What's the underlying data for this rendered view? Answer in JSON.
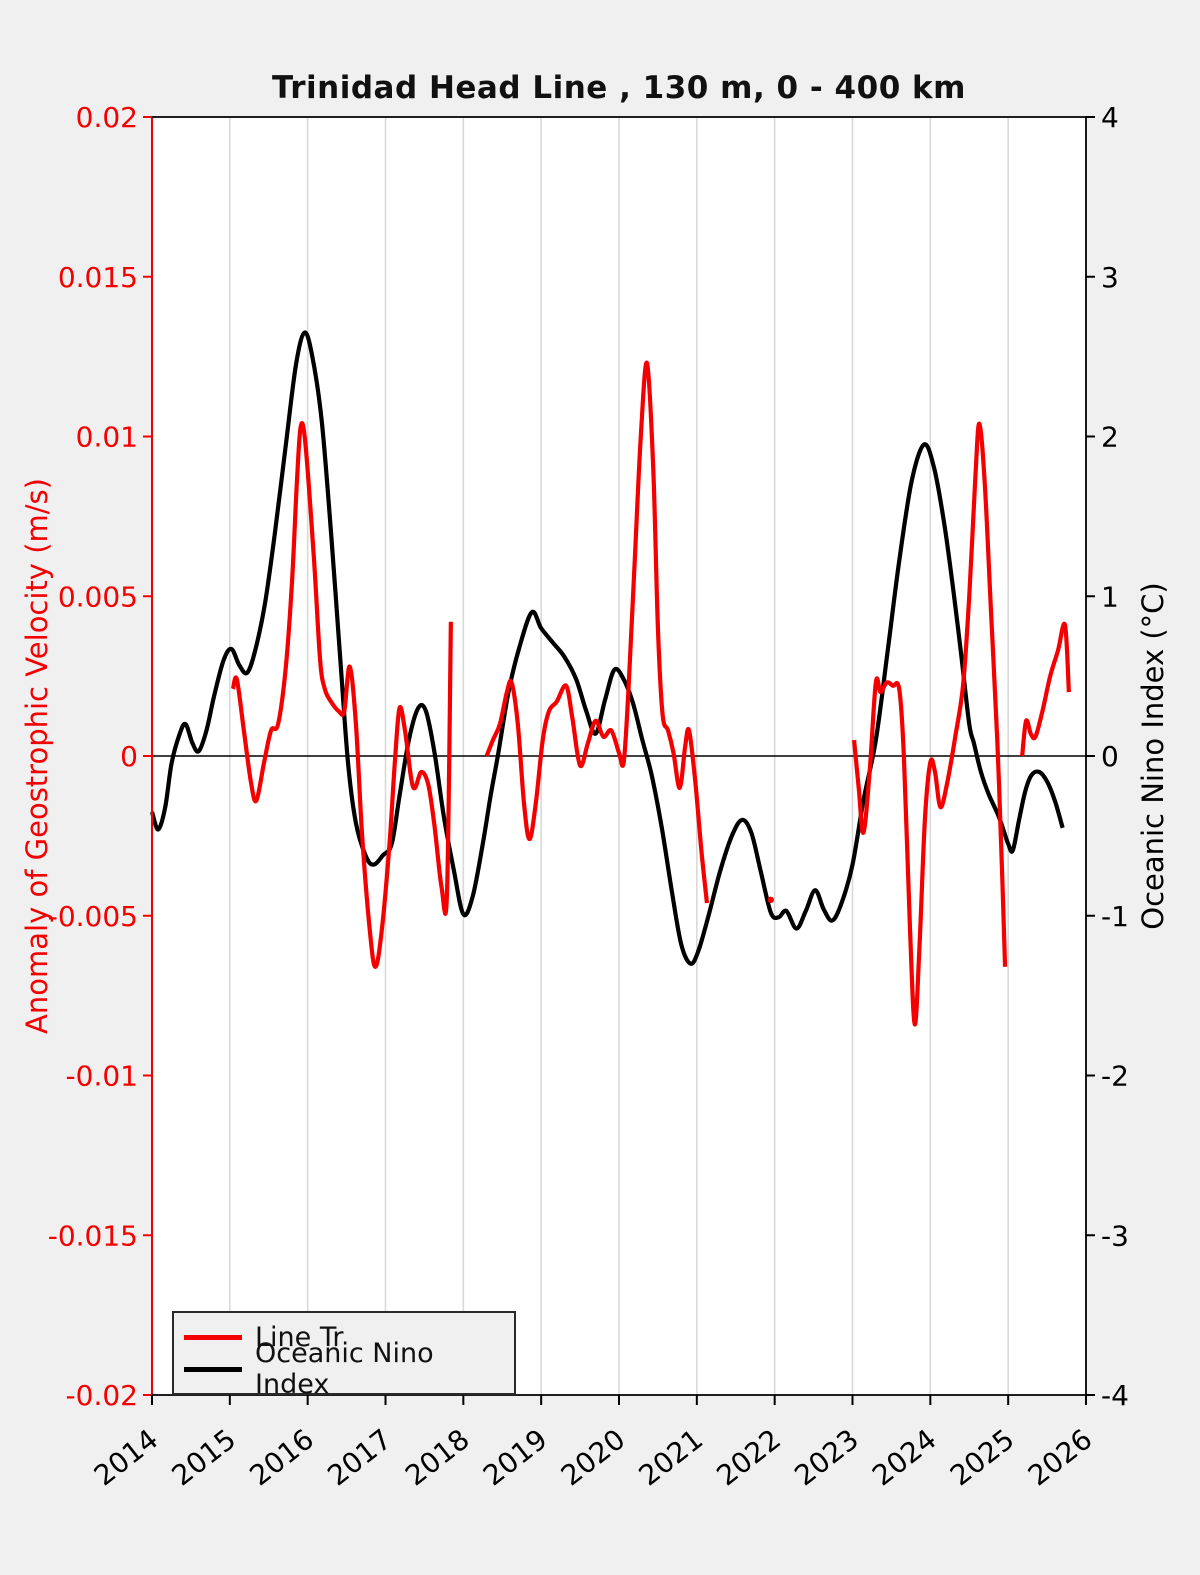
{
  "title": "Trinidad Head Line , 130 m, 0 - 400 km",
  "colors": {
    "figure_background": "#f0f0f0",
    "plot_background": "#ffffff",
    "grid": "#d9d9d9",
    "red_accent": "#f40000",
    "black": "#000000"
  },
  "left_axis": {
    "label": "Anomaly of Geostrophic Velocity (m/s)",
    "color": "#f40000",
    "lim": [
      -0.02,
      0.02
    ],
    "ticks": [
      0.02,
      0.015,
      0.01,
      0.005,
      0,
      -0.005,
      -0.01,
      -0.015,
      -0.02
    ],
    "tick_labels": [
      "0.02",
      "0.015",
      "0.01",
      "0.005",
      "0",
      "-0.005",
      "-0.01",
      "-0.015",
      "-0.02"
    ]
  },
  "right_axis": {
    "label": "Oceanic Nino Index (°C)",
    "color": "#000000",
    "lim": [
      -4,
      4
    ],
    "ticks": [
      4,
      3,
      2,
      1,
      0,
      -1,
      -2,
      -3,
      -4
    ],
    "tick_labels": [
      "4",
      "3",
      "2",
      "1",
      "0",
      "-1",
      "-2",
      "-3",
      "-4"
    ]
  },
  "x_axis": {
    "lim": [
      2014,
      2026
    ],
    "ticks": [
      2014,
      2015,
      2016,
      2017,
      2018,
      2019,
      2020,
      2021,
      2022,
      2023,
      2024,
      2025,
      2026
    ],
    "tick_labels": [
      "2014",
      "2015",
      "2016",
      "2017",
      "2018",
      "2019",
      "2020",
      "2021",
      "2022",
      "2023",
      "2024",
      "2025",
      "2026"
    ]
  },
  "legend": {
    "items": [
      {
        "label": "Line Tr",
        "color": "#f40000"
      },
      {
        "label": "Oceanic Nino Index",
        "color": "#000000"
      }
    ]
  },
  "chart_data": {
    "type": "line",
    "title": "Trinidad Head Line , 130 m, 0 - 400 km",
    "x_unit": "decimal year",
    "grid": "vertical-yearly",
    "legend_position": "lower-left",
    "series": [
      {
        "name": "Oceanic Nino Index",
        "axis": "right",
        "color": "#000000",
        "linewidth": 4.2,
        "segments": [
          [
            [
              2014.0,
              -0.35
            ],
            [
              2014.08,
              -0.46
            ],
            [
              2014.17,
              -0.32
            ],
            [
              2014.25,
              -0.05
            ],
            [
              2014.35,
              0.13
            ],
            [
              2014.43,
              0.2
            ],
            [
              2014.52,
              0.08
            ],
            [
              2014.6,
              0.03
            ],
            [
              2014.7,
              0.16
            ],
            [
              2014.8,
              0.38
            ],
            [
              2014.92,
              0.6
            ],
            [
              2015.02,
              0.67
            ],
            [
              2015.12,
              0.57
            ],
            [
              2015.22,
              0.52
            ],
            [
              2015.32,
              0.65
            ],
            [
              2015.45,
              0.95
            ],
            [
              2015.58,
              1.4
            ],
            [
              2015.72,
              1.95
            ],
            [
              2015.85,
              2.45
            ],
            [
              2015.96,
              2.65
            ],
            [
              2016.06,
              2.5
            ],
            [
              2016.18,
              2.1
            ],
            [
              2016.3,
              1.4
            ],
            [
              2016.42,
              0.6
            ],
            [
              2016.52,
              -0.05
            ],
            [
              2016.62,
              -0.42
            ],
            [
              2016.75,
              -0.63
            ],
            [
              2016.85,
              -0.68
            ],
            [
              2016.97,
              -0.62
            ],
            [
              2017.08,
              -0.55
            ],
            [
              2017.18,
              -0.25
            ],
            [
              2017.3,
              0.1
            ],
            [
              2017.42,
              0.3
            ],
            [
              2017.52,
              0.28
            ],
            [
              2017.63,
              0.02
            ],
            [
              2017.75,
              -0.38
            ],
            [
              2017.88,
              -0.72
            ],
            [
              2018.0,
              -0.99
            ],
            [
              2018.12,
              -0.88
            ],
            [
              2018.25,
              -0.55
            ],
            [
              2018.35,
              -0.25
            ],
            [
              2018.45,
              0.02
            ],
            [
              2018.58,
              0.4
            ],
            [
              2018.72,
              0.68
            ],
            [
              2018.88,
              0.9
            ],
            [
              2019.0,
              0.8
            ],
            [
              2019.15,
              0.71
            ],
            [
              2019.3,
              0.62
            ],
            [
              2019.45,
              0.48
            ],
            [
              2019.58,
              0.28
            ],
            [
              2019.7,
              0.14
            ],
            [
              2019.82,
              0.35
            ],
            [
              2019.94,
              0.54
            ],
            [
              2020.06,
              0.48
            ],
            [
              2020.18,
              0.33
            ],
            [
              2020.3,
              0.1
            ],
            [
              2020.42,
              -0.12
            ],
            [
              2020.55,
              -0.45
            ],
            [
              2020.68,
              -0.85
            ],
            [
              2020.8,
              -1.18
            ],
            [
              2020.92,
              -1.3
            ],
            [
              2021.02,
              -1.22
            ],
            [
              2021.15,
              -1.0
            ],
            [
              2021.3,
              -0.72
            ],
            [
              2021.45,
              -0.5
            ],
            [
              2021.58,
              -0.4
            ],
            [
              2021.7,
              -0.48
            ],
            [
              2021.82,
              -0.72
            ],
            [
              2021.95,
              -0.98
            ],
            [
              2022.05,
              -1.01
            ],
            [
              2022.15,
              -0.97
            ],
            [
              2022.28,
              -1.08
            ],
            [
              2022.4,
              -0.97
            ],
            [
              2022.52,
              -0.84
            ],
            [
              2022.63,
              -0.96
            ],
            [
              2022.74,
              -1.03
            ],
            [
              2022.86,
              -0.92
            ],
            [
              2023.0,
              -0.68
            ],
            [
              2023.14,
              -0.28
            ],
            [
              2023.3,
              0.1
            ],
            [
              2023.45,
              0.65
            ],
            [
              2023.6,
              1.22
            ],
            [
              2023.76,
              1.72
            ],
            [
              2023.92,
              1.95
            ],
            [
              2024.05,
              1.8
            ],
            [
              2024.18,
              1.45
            ],
            [
              2024.3,
              1.02
            ],
            [
              2024.4,
              0.62
            ],
            [
              2024.5,
              0.2
            ],
            [
              2024.56,
              0.08
            ],
            [
              2024.65,
              -0.1
            ],
            [
              2024.75,
              -0.24
            ],
            [
              2024.88,
              -0.38
            ],
            [
              2025.0,
              -0.55
            ],
            [
              2025.06,
              -0.59
            ],
            [
              2025.14,
              -0.4
            ],
            [
              2025.22,
              -0.22
            ],
            [
              2025.3,
              -0.12
            ],
            [
              2025.4,
              -0.1
            ],
            [
              2025.5,
              -0.16
            ],
            [
              2025.6,
              -0.28
            ],
            [
              2025.7,
              -0.45
            ]
          ]
        ]
      },
      {
        "name": "Line Tr",
        "axis": "left",
        "color": "#f40000",
        "linewidth": 4.2,
        "segments": [
          [
            [
              2015.04,
              0.0021
            ],
            [
              2015.09,
              0.0024
            ],
            [
              2015.18,
              0.0008
            ],
            [
              2015.27,
              -0.0008
            ],
            [
              2015.34,
              -0.0014
            ],
            [
              2015.44,
              -0.0002
            ],
            [
              2015.53,
              0.0008
            ],
            [
              2015.62,
              0.001
            ],
            [
              2015.72,
              0.0028
            ],
            [
              2015.8,
              0.0055
            ],
            [
              2015.86,
              0.0085
            ],
            [
              2015.91,
              0.0103
            ],
            [
              2015.97,
              0.0098
            ],
            [
              2016.08,
              0.0062
            ],
            [
              2016.16,
              0.003
            ],
            [
              2016.22,
              0.0021
            ],
            [
              2016.3,
              0.0017
            ],
            [
              2016.4,
              0.0014
            ],
            [
              2016.47,
              0.0014
            ],
            [
              2016.54,
              0.0028
            ],
            [
              2016.62,
              0.001
            ],
            [
              2016.7,
              -0.0025
            ],
            [
              2016.8,
              -0.0055
            ],
            [
              2016.87,
              -0.0066
            ],
            [
              2016.95,
              -0.0055
            ],
            [
              2017.05,
              -0.0028
            ],
            [
              2017.12,
              -0.0002
            ],
            [
              2017.18,
              0.0015
            ],
            [
              2017.25,
              0.0008
            ],
            [
              2017.33,
              -0.0007
            ],
            [
              2017.38,
              -0.001
            ],
            [
              2017.46,
              -0.0005
            ],
            [
              2017.55,
              -0.0009
            ],
            [
              2017.63,
              -0.0022
            ],
            [
              2017.72,
              -0.0041
            ],
            [
              2017.79,
              -0.0043
            ],
            [
              2017.84,
              0.0042
            ]
          ],
          [
            [
              2018.3,
              0.0
            ],
            [
              2018.38,
              0.0005
            ],
            [
              2018.47,
              0.001
            ],
            [
              2018.56,
              0.002
            ],
            [
              2018.62,
              0.0023
            ],
            [
              2018.7,
              0.001
            ],
            [
              2018.78,
              -0.0015
            ],
            [
              2018.85,
              -0.0026
            ],
            [
              2018.93,
              -0.0015
            ],
            [
              2019.02,
              0.0005
            ],
            [
              2019.1,
              0.0014
            ],
            [
              2019.2,
              0.0017
            ],
            [
              2019.32,
              0.0022
            ],
            [
              2019.4,
              0.0012
            ],
            [
              2019.5,
              -0.0003
            ],
            [
              2019.6,
              0.0004
            ],
            [
              2019.7,
              0.0011
            ],
            [
              2019.8,
              0.0006
            ],
            [
              2019.9,
              0.0008
            ],
            [
              2020.0,
              0.0001
            ],
            [
              2020.06,
              -0.0002
            ],
            [
              2020.12,
              0.002
            ],
            [
              2020.2,
              0.006
            ],
            [
              2020.28,
              0.01
            ],
            [
              2020.36,
              0.0123
            ],
            [
              2020.44,
              0.009
            ],
            [
              2020.5,
              0.004
            ],
            [
              2020.56,
              0.0013
            ],
            [
              2020.63,
              0.0008
            ],
            [
              2020.7,
              0.0001
            ],
            [
              2020.78,
              -0.001
            ],
            [
              2020.85,
              0.0003
            ],
            [
              2020.9,
              0.0008
            ],
            [
              2020.98,
              -0.0008
            ],
            [
              2021.06,
              -0.003
            ],
            [
              2021.13,
              -0.0046
            ]
          ],
          [
            [
              2021.95,
              -0.0045
            ]
          ],
          [
            [
              2023.02,
              0.0005
            ],
            [
              2023.08,
              -0.001
            ],
            [
              2023.14,
              -0.0024
            ],
            [
              2023.22,
              -0.0005
            ],
            [
              2023.3,
              0.0023
            ],
            [
              2023.36,
              0.002
            ],
            [
              2023.44,
              0.0023
            ],
            [
              2023.52,
              0.0022
            ],
            [
              2023.6,
              0.0021
            ],
            [
              2023.66,
              0.0
            ],
            [
              2023.74,
              -0.0055
            ],
            [
              2023.8,
              -0.0084
            ],
            [
              2023.86,
              -0.006
            ],
            [
              2023.93,
              -0.002
            ],
            [
              2024.0,
              -0.0002
            ],
            [
              2024.06,
              -0.0005
            ],
            [
              2024.13,
              -0.0016
            ],
            [
              2024.22,
              -0.0008
            ],
            [
              2024.32,
              0.0006
            ],
            [
              2024.42,
              0.0022
            ],
            [
              2024.5,
              0.005
            ],
            [
              2024.58,
              0.0088
            ],
            [
              2024.63,
              0.0104
            ],
            [
              2024.7,
              0.0085
            ],
            [
              2024.78,
              0.0045
            ],
            [
              2024.86,
              0.0005
            ],
            [
              2024.92,
              -0.0035
            ],
            [
              2024.96,
              -0.0066
            ]
          ],
          [
            [
              2025.18,
              0.0
            ],
            [
              2025.23,
              0.0011
            ],
            [
              2025.29,
              0.0007
            ],
            [
              2025.35,
              0.0006
            ],
            [
              2025.44,
              0.0014
            ],
            [
              2025.54,
              0.0025
            ],
            [
              2025.64,
              0.0033
            ],
            [
              2025.73,
              0.0041
            ],
            [
              2025.78,
              0.002
            ]
          ]
        ]
      }
    ]
  }
}
